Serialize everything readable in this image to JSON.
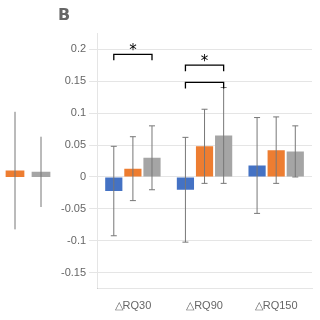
{
  "chart_data": [
    {
      "type": "bar",
      "title": "B",
      "categories": [
        "△RQ30",
        "△RQ90",
        "△RQ150"
      ],
      "series": [
        {
          "color": "#4472C4",
          "values": [
            -0.022,
            -0.02,
            0.018
          ],
          "errors": [
            0.07,
            0.082,
            0.075
          ]
        },
        {
          "color": "#ED7D31",
          "values": [
            0.013,
            0.048,
            0.042
          ],
          "errors": [
            0.05,
            0.058,
            0.052
          ]
        },
        {
          "color": "#A5A5A5",
          "values": [
            0.03,
            0.065,
            0.04
          ],
          "errors": [
            0.05,
            0.075,
            0.04
          ]
        }
      ],
      "ylim": [
        -0.175,
        0.225
      ],
      "yticks": [
        -0.15,
        -0.1,
        -0.05,
        0,
        0.05,
        0.1,
        0.15,
        0.2
      ],
      "grid": true,
      "annotations": [
        {
          "type": "bracket",
          "category": "△RQ30",
          "from_series": 0,
          "to_series": 2,
          "y": 0.192,
          "text": "*"
        },
        {
          "type": "bracket",
          "category": "△RQ90",
          "from_series": 0,
          "to_series": 2,
          "y": 0.175,
          "text": "*"
        },
        {
          "type": "bracket",
          "category": "△RQ90",
          "from_series": 0,
          "to_series": 2,
          "y": 0.148
        }
      ]
    },
    {
      "type": "bar",
      "categories": [
        null,
        null
      ],
      "values": [
        0.01,
        0.008
      ],
      "errors": [
        0.092,
        0.055
      ],
      "colors": [
        "#ED7D31",
        "#A5A5A5"
      ],
      "ylim": [
        -0.175,
        0.225
      ],
      "grid": false,
      "tick_labels": false
    }
  ]
}
